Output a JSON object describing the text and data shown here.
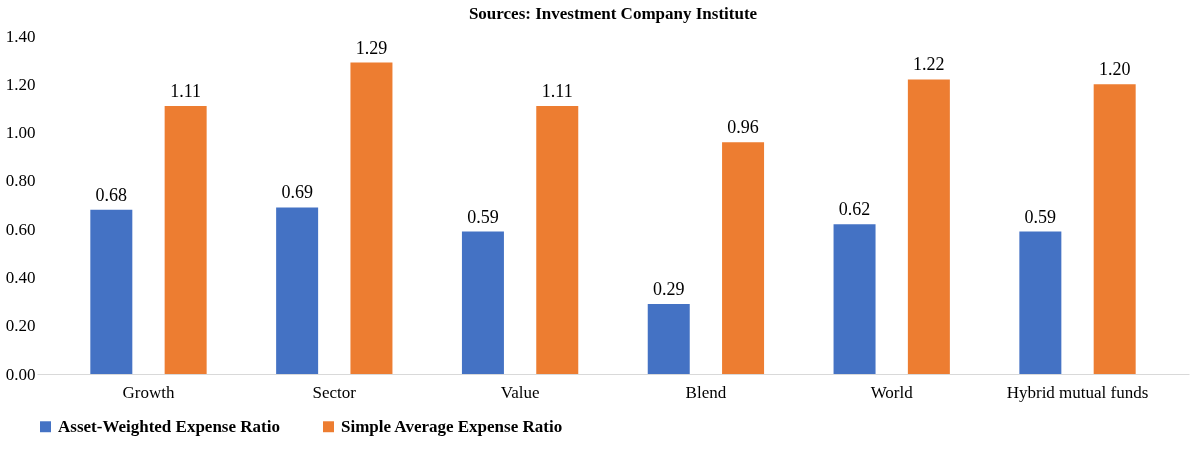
{
  "chart_data": {
    "type": "bar",
    "title": "Sources: Investment Company Institute",
    "categories": [
      "Growth",
      "Sector",
      "Value",
      "Blend",
      "World",
      "Hybrid mutual funds"
    ],
    "series": [
      {
        "name": "Asset-Weighted Expense Ratio",
        "color": "#4472c4",
        "values": [
          0.68,
          0.69,
          0.59,
          0.29,
          0.62,
          0.59
        ]
      },
      {
        "name": "Simple Average Expense Ratio",
        "color": "#ed7d31",
        "values": [
          1.11,
          1.29,
          1.11,
          0.96,
          1.22,
          1.2
        ]
      }
    ],
    "ylim": [
      0,
      1.4
    ],
    "yticks": [
      {
        "value": 0,
        "label": "0.00"
      },
      {
        "value": 0.2,
        "label": "0.20"
      },
      {
        "value": 0.4,
        "label": "0.40"
      },
      {
        "value": 0.6,
        "label": "0.60"
      },
      {
        "value": 0.8,
        "label": "0.80"
      },
      {
        "value": 1.0,
        "label": "1.00"
      },
      {
        "value": 1.2,
        "label": "1.20"
      },
      {
        "value": 1.4,
        "label": "1.40"
      }
    ],
    "value_labels": [
      [
        "0.68",
        "0.69",
        "0.59",
        "0.29",
        "0.62",
        "0.59"
      ],
      [
        "1.11",
        "1.29",
        "1.11",
        "0.96",
        "1.22",
        "1.20"
      ]
    ],
    "grid": false,
    "legend": "bottom"
  }
}
